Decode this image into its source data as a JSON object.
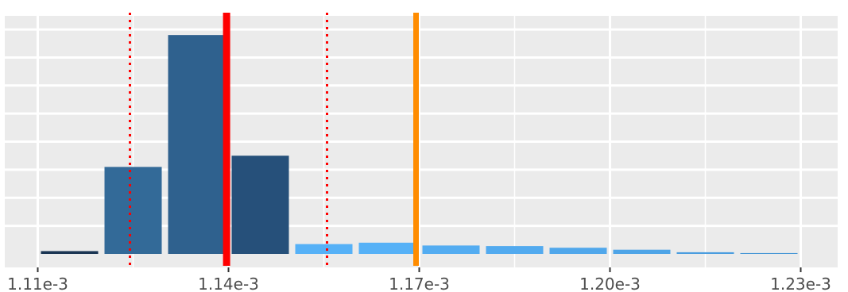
{
  "chart_data": {
    "type": "bar",
    "title": "",
    "xlabel": "",
    "ylabel": "",
    "grid": true,
    "legend": "none",
    "xlim": [
      0.0011085,
      0.0012305
    ],
    "ylim": [
      0,
      0.0082
    ],
    "x_ticks": [
      {
        "value": 0.00111,
        "label": "1.11e-3"
      },
      {
        "value": 0.00114,
        "label": "1.14e-3"
      },
      {
        "value": 0.00117,
        "label": "1.17e-3"
      },
      {
        "value": 0.0012,
        "label": "1.20e-3"
      },
      {
        "value": 0.00123,
        "label": "1.23e-3"
      }
    ],
    "minor_x_ticks": [
      0.001125,
      0.001155,
      0.001185,
      0.001215
    ],
    "y_gridlines": [
      0.001,
      0.002,
      0.003,
      0.004,
      0.005,
      0.006,
      0.007,
      0.008
    ],
    "bin_width": 1e-05,
    "bars": [
      {
        "x": 0.001115,
        "value": 0.0001,
        "color": "#1a3553"
      },
      {
        "x": 0.001125,
        "value": 0.0031,
        "color": "#336a98"
      },
      {
        "x": 0.001135,
        "value": 0.0078,
        "color": "#2f618e"
      },
      {
        "x": 0.001145,
        "value": 0.0035,
        "color": "#26507a"
      },
      {
        "x": 0.001155,
        "value": 0.00035,
        "color": "#56b1f7"
      },
      {
        "x": 0.001165,
        "value": 0.0004,
        "color": "#56b1f7"
      },
      {
        "x": 0.001175,
        "value": 0.0003,
        "color": "#53acf1"
      },
      {
        "x": 0.001185,
        "value": 0.00028,
        "color": "#52aaef"
      },
      {
        "x": 0.001195,
        "value": 0.00022,
        "color": "#50a7eb"
      },
      {
        "x": 0.001205,
        "value": 0.00015,
        "color": "#4ea4e7"
      },
      {
        "x": 0.001215,
        "value": 6e-05,
        "color": "#4a9ddf"
      },
      {
        "x": 0.001225,
        "value": 3e-05,
        "color": "#4696d6"
      }
    ],
    "vlines": [
      {
        "x": 0.0011397,
        "color": "#ff0000",
        "style": "solid"
      },
      {
        "x": 0.0011245,
        "color": "#ff0000",
        "style": "dotted"
      },
      {
        "x": 0.0011555,
        "color": "#ff0000",
        "style": "dotted"
      },
      {
        "x": 0.0011695,
        "color": "#ff8c00",
        "style": "solid"
      }
    ],
    "colors": {
      "panel_background": "#ebebeb",
      "grid": "#ffffff"
    }
  }
}
